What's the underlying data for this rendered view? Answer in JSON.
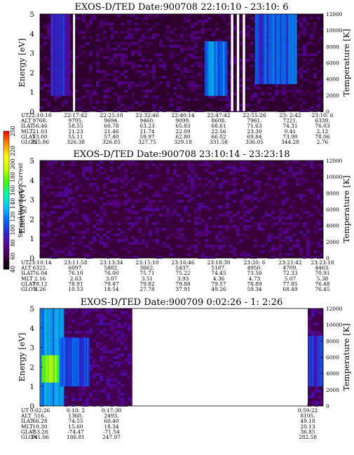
{
  "chart_data": [
    {
      "type": "heatmap",
      "title": "EXOS-D/TED   Date:900708  22:10:10 - 23:10: 6",
      "ylabel": "Energy [eV]",
      "ylabel_right": "Temperature [K]",
      "ylim": [
        0,
        5
      ],
      "yticks": [
        "0",
        "1",
        "2",
        "3",
        "4",
        "5"
      ],
      "ylim_right": [
        0,
        12000
      ],
      "yticks_right": [
        "0",
        "2000",
        "4000",
        "6000",
        "8000",
        "10000",
        "12000"
      ],
      "xlim": [
        "22:10:10",
        "23:10:06"
      ],
      "ephemeris": {
        "labels": [
          "UT",
          "ALT",
          "ILAT",
          "MLT",
          "GLAT",
          "GLON"
        ],
        "columns": [
          [
            "22:10:10",
            "9768.",
            "56.46",
            "21.03",
            "53.00",
            "325.86"
          ],
          [
            "22:17:42",
            "9795.",
            "58.55",
            "21.23",
            "55.11",
            "326.38"
          ],
          [
            "22:25:10",
            "9694.",
            "60.78",
            "21.46",
            "57.40",
            "326.85"
          ],
          [
            "22:32:46",
            "9460.",
            "63.23",
            "21.74",
            "59.97",
            "327.75"
          ],
          [
            "22:40:14",
            "9099.",
            "65.83",
            "22.09",
            "62.80",
            "329.18"
          ],
          [
            "22:47:42",
            "8608.",
            "68.61",
            "22.56",
            "66.02",
            "331.58"
          ],
          [
            "22:55:26",
            "7961.",
            "71.63",
            "23.30",
            "69.84",
            "336.05"
          ],
          [
            "23: 2:42",
            "7221.",
            "74.31",
            "0.41",
            "73.90",
            "344.28"
          ],
          [
            "23:10: 6",
            "6339.",
            "76.03",
            "2.12",
            "78.06",
            "2.76"
          ]
        ]
      },
      "gaps_ut": [
        [
          "22:17:10",
          "22:17:36"
        ],
        [
          "22:50:35",
          "22:51:05"
        ],
        [
          "22:51:50",
          "22:52:20"
        ],
        [
          "22:53:05",
          "22:53:35"
        ]
      ],
      "features": [
        {
          "from_ut": "22:12:20",
          "to_ut": "22:16:30",
          "energy_ev": [
            0.8,
            5.0
          ],
          "value": 95
        },
        {
          "from_ut": "22:45:00",
          "to_ut": "22:49:50",
          "energy_ev": [
            0.8,
            3.6
          ],
          "value": 120
        },
        {
          "from_ut": "22:55:40",
          "to_ut": "23:04:30",
          "energy_ev": [
            1.4,
            5.0
          ],
          "value": 110
        }
      ],
      "background_value": 55
    },
    {
      "type": "heatmap",
      "title": "EXOS-D/TED   Date:900708  23:10:14 - 23:23:18",
      "ylabel": "Energy [eV]",
      "ylabel_right": "Temperature [K]",
      "ylim": [
        0,
        5
      ],
      "yticks": [
        "0",
        "1",
        "2",
        "3",
        "4",
        "5"
      ],
      "ylim_right": [
        0,
        12000
      ],
      "yticks_right": [
        "0",
        "2000",
        "4000",
        "6000",
        "8000",
        "10000",
        "12000"
      ],
      "xlim": [
        "23:10:14",
        "23:23:18"
      ],
      "colorbar": {
        "label": "Second Harmonic Current",
        "range": [
          40,
          250
        ],
        "ticks": [
          "40",
          "60",
          "80",
          "100",
          "120",
          "140",
          "160",
          "180",
          "200",
          "220",
          "250"
        ],
        "colors": [
          "#000000",
          "#3b003b",
          "#6000a0",
          "#2a2ad8",
          "#0070ff",
          "#00c8ff",
          "#00ffb0",
          "#40ff00",
          "#c8ff00",
          "#ffff00",
          "#ff9000",
          "#ff0000"
        ]
      },
      "ephemeris": {
        "labels": [
          "UT",
          "ALT",
          "ILAT",
          "MLT",
          "GLAT",
          "GLON"
        ],
        "columns": [
          [
            "23:10:14",
            "6322.",
            "76.04",
            "2.16",
            "78.12",
            "3.26"
          ],
          [
            "23:11:58",
            "6097.",
            "76.10",
            "2.63",
            "78.91",
            "10.53"
          ],
          [
            "23:13:34",
            "5882.",
            "76.00",
            "3.07",
            "79.47",
            "18.54"
          ],
          [
            "23:15:10",
            "3662.",
            "75.71",
            "3.51",
            "79.82",
            "27.78"
          ],
          [
            "23:16:46",
            "5437.",
            "75.22",
            "3.93",
            "79.88",
            "37.91"
          ],
          [
            "23:18:30",
            "5187.",
            "74.45",
            "4.36",
            "79.57",
            "49.26"
          ],
          [
            "23:20: 6",
            "4950.",
            "73.50",
            "4.73",
            "78.89",
            "59.34"
          ],
          [
            "23:21:42",
            "4709.",
            "72.33",
            "5.07",
            "77.85",
            "68.49"
          ],
          [
            "23:23:18",
            "4463.",
            "70.91",
            "5.38",
            "76.48",
            "76.45"
          ]
        ]
      },
      "background_value": 58
    },
    {
      "type": "heatmap",
      "title": "EXOS-D/TED   Date:900709   0:02:26 - 1: 2:26",
      "ylabel": "Energy [eV]",
      "ylabel_right": "Temperature [K]",
      "ylim": [
        0,
        5
      ],
      "yticks": [
        "0",
        "1",
        "2",
        "3",
        "4",
        "5"
      ],
      "ylim_right": [
        0,
        12000
      ],
      "yticks_right": [
        "0",
        "2000",
        "4000",
        "6000",
        "8000",
        "10000",
        "12000"
      ],
      "xlim": [
        "0:02:26",
        "1:02:26"
      ],
      "ephemeris": {
        "labels": [
          "UT",
          "ALT",
          "ILAT",
          "MLT",
          "GLAT",
          "GLON"
        ],
        "columns": [
          [
            "0:02:26",
            "516.",
            "66.28",
            "10.30",
            "-53.26",
            "141.06"
          ],
          [
            "0:10: 2",
            "1360.",
            "74.55",
            "15.60",
            "-74.47",
            "186.81"
          ],
          [
            "0:17:30",
            "2493.",
            "60.40",
            "18.34",
            "-71.54",
            "247.97"
          ],
          [
            "0:59:22",
            "8105.",
            "49.18",
            "20.13",
            "36.85",
            "282.58"
          ]
        ]
      },
      "data_intervals_ut": [
        [
          "0:02:26",
          "0:22:00"
        ],
        [
          "0:59:10",
          "1:02:26"
        ]
      ],
      "features": [
        {
          "from_ut": "0:02:26",
          "to_ut": "0:07:30",
          "energy_ev": [
            0.0,
            5.0
          ],
          "value": 125
        },
        {
          "from_ut": "0:02:50",
          "to_ut": "0:06:30",
          "energy_ev": [
            1.2,
            2.6
          ],
          "value": 185
        },
        {
          "from_ut": "0:06:30",
          "to_ut": "0:13:00",
          "energy_ev": [
            1.0,
            3.5
          ],
          "value": 105
        },
        {
          "from_ut": "0:59:10",
          "to_ut": "1:02:26",
          "energy_ev": [
            1.0,
            3.6
          ],
          "value": 100
        }
      ],
      "background_value": 62
    }
  ]
}
